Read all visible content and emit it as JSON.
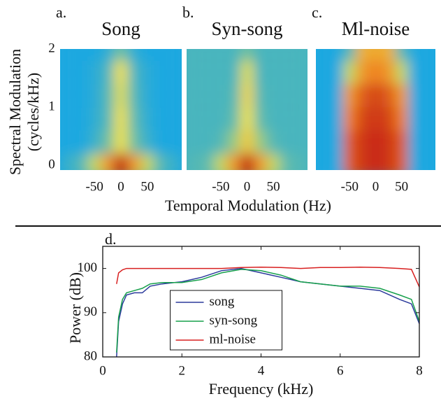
{
  "chart_data": [
    {
      "type": "heatmap",
      "label": "a.",
      "title": "Song",
      "ylabel": [
        "Spectral Modulation",
        "(cycles/kHz)"
      ],
      "xlim": [
        -115,
        115
      ],
      "ylim": [
        -0.08,
        2
      ],
      "xticks": [
        -50,
        0,
        50
      ],
      "yticks": [
        0,
        1,
        2
      ],
      "x": [
        -100,
        -75,
        -50,
        -25,
        0,
        25,
        50,
        75,
        100
      ],
      "y": [
        0,
        0.4,
        0.8,
        1.2,
        1.6,
        2.0
      ],
      "z": [
        [
          0.35,
          0.4,
          0.55,
          0.75,
          0.95,
          0.75,
          0.55,
          0.4,
          0.35
        ],
        [
          0.3,
          0.3,
          0.35,
          0.45,
          0.6,
          0.45,
          0.35,
          0.3,
          0.3
        ],
        [
          0.3,
          0.3,
          0.33,
          0.4,
          0.6,
          0.42,
          0.33,
          0.3,
          0.3
        ],
        [
          0.3,
          0.3,
          0.32,
          0.4,
          0.58,
          0.4,
          0.32,
          0.3,
          0.3
        ],
        [
          0.3,
          0.3,
          0.32,
          0.38,
          0.6,
          0.38,
          0.32,
          0.3,
          0.3
        ],
        [
          0.3,
          0.3,
          0.3,
          0.33,
          0.45,
          0.33,
          0.3,
          0.3,
          0.3
        ]
      ]
    },
    {
      "type": "heatmap",
      "label": "b.",
      "title": "Syn-song",
      "xlabel": "Temporal Modulation (Hz)",
      "xlim": [
        -115,
        115
      ],
      "ylim": [
        -0.08,
        2
      ],
      "xticks": [
        -50,
        0,
        50
      ],
      "x": [
        -100,
        -75,
        -50,
        -25,
        0,
        25,
        50,
        75,
        100
      ],
      "y": [
        0,
        0.4,
        0.8,
        1.2,
        1.6,
        2.0
      ],
      "z": [
        [
          0.4,
          0.42,
          0.55,
          0.75,
          0.95,
          0.75,
          0.55,
          0.42,
          0.4
        ],
        [
          0.38,
          0.38,
          0.4,
          0.5,
          0.65,
          0.5,
          0.4,
          0.38,
          0.38
        ],
        [
          0.38,
          0.38,
          0.38,
          0.42,
          0.6,
          0.42,
          0.38,
          0.38,
          0.38
        ],
        [
          0.38,
          0.38,
          0.38,
          0.4,
          0.62,
          0.4,
          0.38,
          0.38,
          0.38
        ],
        [
          0.38,
          0.38,
          0.38,
          0.38,
          0.58,
          0.38,
          0.38,
          0.38,
          0.38
        ],
        [
          0.38,
          0.38,
          0.38,
          0.38,
          0.45,
          0.38,
          0.38,
          0.38,
          0.38
        ]
      ]
    },
    {
      "type": "heatmap",
      "label": "c.",
      "title": "Ml-noise",
      "xlim": [
        -115,
        115
      ],
      "ylim": [
        -0.08,
        2
      ],
      "xticks": [
        -50,
        0,
        50
      ],
      "x": [
        -100,
        -75,
        -50,
        -25,
        0,
        25,
        50,
        75,
        100
      ],
      "y": [
        0,
        0.4,
        0.8,
        1.2,
        1.6,
        2.0
      ],
      "z": [
        [
          0.3,
          0.3,
          0.85,
          0.9,
          0.92,
          0.9,
          0.85,
          0.3,
          0.3
        ],
        [
          0.3,
          0.3,
          0.85,
          0.9,
          0.92,
          0.9,
          0.85,
          0.3,
          0.3
        ],
        [
          0.3,
          0.3,
          0.8,
          0.88,
          0.9,
          0.88,
          0.8,
          0.3,
          0.3
        ],
        [
          0.3,
          0.3,
          0.75,
          0.85,
          0.88,
          0.85,
          0.75,
          0.3,
          0.3
        ],
        [
          0.3,
          0.3,
          0.55,
          0.75,
          0.8,
          0.75,
          0.55,
          0.3,
          0.3
        ],
        [
          0.3,
          0.3,
          0.4,
          0.7,
          0.72,
          0.7,
          0.4,
          0.3,
          0.3
        ]
      ]
    },
    {
      "type": "line",
      "label": "d.",
      "xlabel": "Frequency (kHz)",
      "ylabel": "Power (dB)",
      "xlim": [
        0,
        8
      ],
      "ylim": [
        80,
        105
      ],
      "xticks": [
        0,
        2,
        4,
        6,
        8
      ],
      "yticks": [
        80,
        90,
        100
      ],
      "legend": "lower center",
      "x": [
        0.35,
        0.4,
        0.5,
        0.6,
        0.8,
        1,
        1.2,
        1.5,
        2,
        2.5,
        3,
        3.5,
        4,
        4.5,
        5,
        5.5,
        6,
        6.5,
        7,
        7.5,
        7.8,
        8
      ],
      "series": [
        {
          "name": "song",
          "color": "#2b3a9c",
          "values": [
            80,
            88,
            92,
            94,
            94.5,
            94.5,
            96,
            96.5,
            97,
            98,
            99.5,
            100,
            99,
            98,
            97,
            96.5,
            96,
            95.5,
            95,
            93,
            92,
            87.5
          ]
        },
        {
          "name": "syn-song",
          "color": "#17a04c",
          "values": [
            81,
            89,
            93,
            94.5,
            95,
            95.5,
            96.5,
            96.8,
            96.8,
            97.5,
            99,
            99.8,
            99.5,
            98.5,
            97,
            96.5,
            96,
            96,
            95.5,
            94,
            93,
            88
          ]
        },
        {
          "name": "ml-noise",
          "color": "#d82020",
          "values": [
            96.5,
            99,
            99.7,
            100,
            100,
            100,
            100,
            100,
            100,
            100,
            100,
            100.2,
            100.3,
            100.2,
            100,
            100.2,
            100.2,
            100.3,
            100.2,
            100,
            99.8,
            95.8
          ]
        }
      ]
    }
  ]
}
